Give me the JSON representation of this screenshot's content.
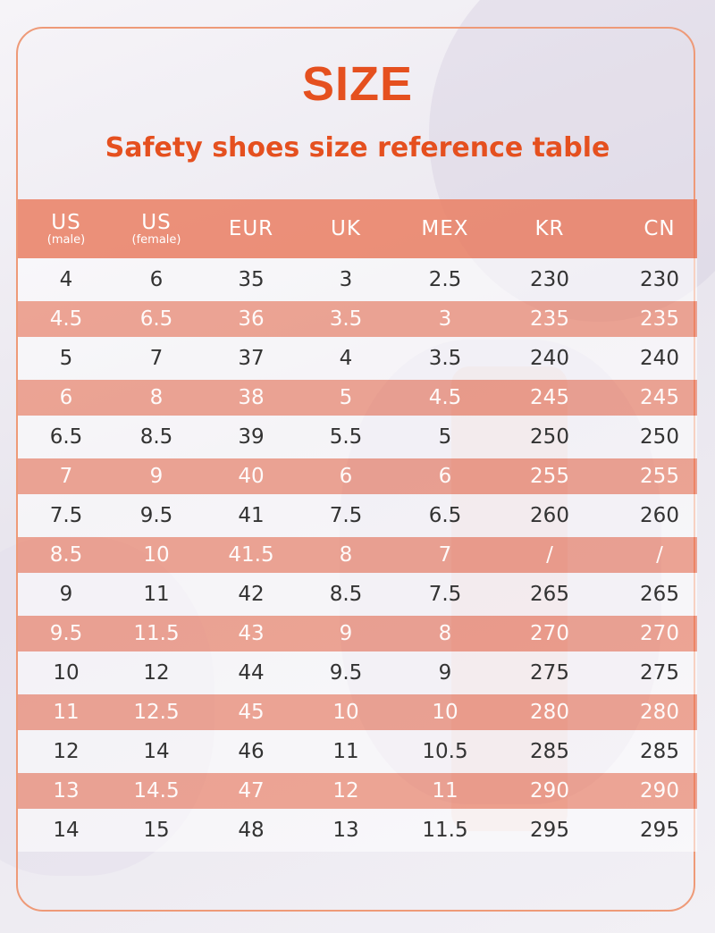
{
  "title": "SIZE",
  "subtitle": "Safety shoes size reference table",
  "colors": {
    "accent": "#e5501f",
    "band": "#ea785a",
    "frame": "#ee9a78"
  },
  "table": {
    "headers": [
      {
        "label": "US",
        "sub": "(male)"
      },
      {
        "label": "US",
        "sub": "(female)"
      },
      {
        "label": "EUR",
        "sub": ""
      },
      {
        "label": "UK",
        "sub": ""
      },
      {
        "label": "MEX",
        "sub": ""
      },
      {
        "label": "KR",
        "sub": ""
      },
      {
        "label": "CN",
        "sub": ""
      }
    ],
    "rows": [
      [
        "4",
        "6",
        "35",
        "3",
        "2.5",
        "230",
        "230"
      ],
      [
        "4.5",
        "6.5",
        "36",
        "3.5",
        "3",
        "235",
        "235"
      ],
      [
        "5",
        "7",
        "37",
        "4",
        "3.5",
        "240",
        "240"
      ],
      [
        "6",
        "8",
        "38",
        "5",
        "4.5",
        "245",
        "245"
      ],
      [
        "6.5",
        "8.5",
        "39",
        "5.5",
        "5",
        "250",
        "250"
      ],
      [
        "7",
        "9",
        "40",
        "6",
        "6",
        "255",
        "255"
      ],
      [
        "7.5",
        "9.5",
        "41",
        "7.5",
        "6.5",
        "260",
        "260"
      ],
      [
        "8.5",
        "10",
        "41.5",
        "8",
        "7",
        "/",
        "/"
      ],
      [
        "9",
        "11",
        "42",
        "8.5",
        "7.5",
        "265",
        "265"
      ],
      [
        "9.5",
        "11.5",
        "43",
        "9",
        "8",
        "270",
        "270"
      ],
      [
        "10",
        "12",
        "44",
        "9.5",
        "9",
        "275",
        "275"
      ],
      [
        "11",
        "12.5",
        "45",
        "10",
        "10",
        "280",
        "280"
      ],
      [
        "12",
        "14",
        "46",
        "11",
        "10.5",
        "285",
        "285"
      ],
      [
        "13",
        "14.5",
        "47",
        "12",
        "11",
        "290",
        "290"
      ],
      [
        "14",
        "15",
        "48",
        "13",
        "11.5",
        "295",
        "295"
      ]
    ]
  }
}
